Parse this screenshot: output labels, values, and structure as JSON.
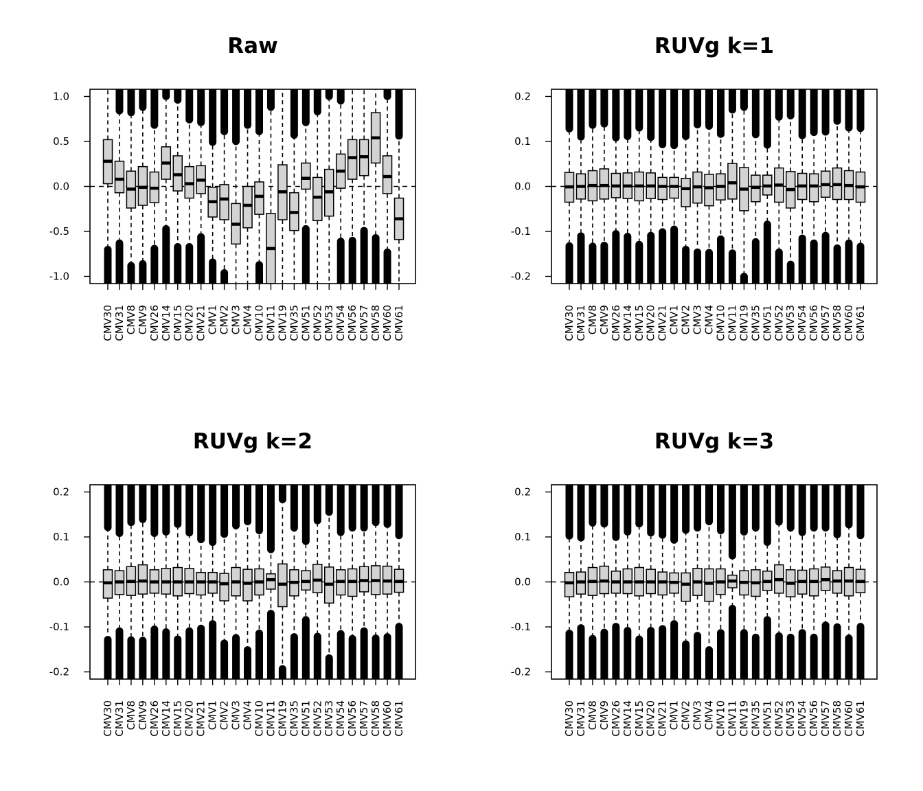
{
  "chart_data": [
    {
      "type": "boxplot",
      "title": "Raw",
      "categories": [
        "CMV30",
        "CMV31",
        "CMV8",
        "CMV9",
        "CMV26",
        "CMV14",
        "CMV15",
        "CMV20",
        "CMV21",
        "CMV1",
        "CMV2",
        "CMV3",
        "CMV4",
        "CMV10",
        "CMV11",
        "CMV19",
        "CMV35",
        "CMV51",
        "CMV52",
        "CMV53",
        "CMV54",
        "CMV56",
        "CMV57",
        "CMV58",
        "CMV60",
        "CMV61"
      ],
      "yticks": [
        1.0,
        0.5,
        0.0,
        -0.5,
        -1.0
      ],
      "ytick_labels": [
        "1.0",
        "0.5",
        "0.0",
        "-0.5",
        "-1.0"
      ],
      "ylim": [
        -1.08,
        1.08
      ],
      "reference_line": 0,
      "q1": [
        0.03,
        -0.07,
        -0.24,
        -0.21,
        -0.18,
        0.08,
        -0.05,
        -0.13,
        -0.08,
        -0.34,
        -0.37,
        -0.64,
        -0.46,
        -0.31,
        -1.08,
        -0.37,
        -0.49,
        -0.03,
        -0.38,
        -0.33,
        -0.02,
        0.08,
        0.12,
        0.26,
        -0.08,
        -0.59
      ],
      "median": [
        0.28,
        0.08,
        -0.03,
        -0.01,
        -0.02,
        0.26,
        0.13,
        0.03,
        0.07,
        -0.17,
        -0.14,
        -0.42,
        -0.21,
        -0.11,
        -0.69,
        -0.06,
        -0.29,
        0.09,
        -0.12,
        -0.06,
        0.17,
        0.32,
        0.33,
        0.54,
        0.11,
        -0.36
      ],
      "q3": [
        0.52,
        0.28,
        0.17,
        0.22,
        0.16,
        0.44,
        0.34,
        0.22,
        0.23,
        -0.01,
        0.02,
        -0.19,
        0.0,
        0.05,
        -0.3,
        0.24,
        -0.07,
        0.26,
        0.1,
        0.19,
        0.36,
        0.52,
        0.52,
        0.82,
        0.34,
        -0.13
      ],
      "upper_tail_start": [
        1.08,
        0.8,
        0.78,
        0.84,
        0.64,
        0.96,
        0.92,
        0.7,
        0.67,
        0.45,
        0.57,
        0.46,
        0.64,
        0.57,
        0.84,
        1.08,
        0.53,
        0.67,
        0.79,
        0.96,
        0.91,
        1.08,
        1.08,
        1.08,
        0.96,
        0.52
      ],
      "lower_tail_start": [
        -0.66,
        -0.59,
        -0.84,
        -0.82,
        -0.65,
        -0.43,
        -0.63,
        -0.63,
        -0.52,
        -0.8,
        -0.92,
        -1.08,
        -1.08,
        -0.83,
        -1.08,
        -1.08,
        -1.08,
        -0.43,
        -1.08,
        -1.08,
        -0.57,
        -0.56,
        -0.45,
        -0.53,
        -0.69,
        -1.08
      ]
    },
    {
      "type": "boxplot",
      "title": "RUVg k=1",
      "categories": [
        "CMV30",
        "CMV31",
        "CMV8",
        "CMV9",
        "CMV26",
        "CMV14",
        "CMV15",
        "CMV20",
        "CMV21",
        "CMV1",
        "CMV2",
        "CMV3",
        "CMV4",
        "CMV10",
        "CMV11",
        "CMV19",
        "CMV35",
        "CMV51",
        "CMV52",
        "CMV53",
        "CMV54",
        "CMV56",
        "CMV57",
        "CMV58",
        "CMV60",
        "CMV61"
      ],
      "yticks": [
        0.2,
        0.1,
        0.0,
        -0.1,
        -0.2
      ],
      "ytick_labels": [
        "0.2",
        "0.1",
        "0.0",
        "-0.1",
        "-0.2"
      ],
      "ylim": [
        -0.216,
        0.216
      ],
      "reference_line": 0,
      "q1": [
        -0.035,
        -0.028,
        -0.032,
        -0.028,
        -0.025,
        -0.027,
        -0.032,
        -0.027,
        -0.029,
        -0.026,
        -0.045,
        -0.037,
        -0.043,
        -0.03,
        -0.028,
        -0.054,
        -0.034,
        -0.019,
        -0.035,
        -0.048,
        -0.029,
        -0.034,
        -0.024,
        -0.029,
        -0.029,
        -0.035
      ],
      "median": [
        -0.001,
        0.0,
        0.002,
        0.002,
        0.001,
        0.001,
        0.001,
        0.001,
        0.0,
        0.0,
        -0.005,
        -0.001,
        -0.003,
        0.0,
        0.008,
        -0.006,
        -0.002,
        0.001,
        0.003,
        -0.007,
        0.001,
        0.001,
        0.004,
        0.004,
        0.002,
        -0.001
      ],
      "q3": [
        0.031,
        0.028,
        0.035,
        0.039,
        0.029,
        0.03,
        0.032,
        0.03,
        0.02,
        0.02,
        0.018,
        0.032,
        0.027,
        0.028,
        0.051,
        0.042,
        0.025,
        0.025,
        0.041,
        0.033,
        0.029,
        0.028,
        0.034,
        0.041,
        0.035,
        0.032
      ],
      "upper_tail_start": [
        0.12,
        0.102,
        0.128,
        0.131,
        0.1,
        0.103,
        0.122,
        0.101,
        0.085,
        0.083,
        0.103,
        0.129,
        0.126,
        0.108,
        0.162,
        0.168,
        0.107,
        0.084,
        0.146,
        0.149,
        0.105,
        0.112,
        0.113,
        0.137,
        0.122,
        0.121
      ],
      "lower_tail_start": [
        -0.124,
        -0.102,
        -0.125,
        -0.123,
        -0.097,
        -0.103,
        -0.121,
        -0.101,
        -0.093,
        -0.087,
        -0.132,
        -0.138,
        -0.139,
        -0.109,
        -0.14,
        -0.192,
        -0.115,
        -0.076,
        -0.138,
        -0.165,
        -0.107,
        -0.118,
        -0.101,
        -0.129,
        -0.118,
        -0.125
      ]
    },
    {
      "type": "boxplot",
      "title": "RUVg k=2",
      "categories": [
        "CMV30",
        "CMV31",
        "CMV8",
        "CMV9",
        "CMV26",
        "CMV14",
        "CMV15",
        "CMV20",
        "CMV21",
        "CMV1",
        "CMV2",
        "CMV3",
        "CMV4",
        "CMV10",
        "CMV11",
        "CMV19",
        "CMV35",
        "CMV51",
        "CMV52",
        "CMV53",
        "CMV54",
        "CMV56",
        "CMV57",
        "CMV58",
        "CMV60",
        "CMV61"
      ],
      "yticks": [
        0.2,
        0.1,
        0.0,
        -0.1,
        -0.2
      ],
      "ytick_labels": [
        "0.2",
        "0.1",
        "0.0",
        "-0.1",
        "-0.2"
      ],
      "ylim": [
        -0.216,
        0.216
      ],
      "reference_line": 0,
      "q1": [
        -0.036,
        -0.028,
        -0.03,
        -0.027,
        -0.025,
        -0.027,
        -0.031,
        -0.026,
        -0.029,
        -0.025,
        -0.042,
        -0.031,
        -0.042,
        -0.029,
        -0.016,
        -0.055,
        -0.031,
        -0.018,
        -0.024,
        -0.047,
        -0.029,
        -0.032,
        -0.022,
        -0.028,
        -0.027,
        -0.023
      ],
      "median": [
        -0.002,
        0.0,
        0.001,
        0.002,
        0.0,
        0.0,
        0.0,
        0.0,
        0.0,
        0.0,
        -0.004,
        0.0,
        -0.003,
        0.0,
        0.005,
        -0.005,
        -0.001,
        0.001,
        0.004,
        -0.005,
        0.001,
        0.001,
        0.003,
        0.003,
        0.002,
        0.001
      ],
      "q3": [
        0.027,
        0.025,
        0.034,
        0.038,
        0.027,
        0.03,
        0.032,
        0.03,
        0.021,
        0.021,
        0.019,
        0.032,
        0.028,
        0.029,
        0.018,
        0.04,
        0.027,
        0.025,
        0.039,
        0.033,
        0.027,
        0.029,
        0.034,
        0.036,
        0.035,
        0.028
      ],
      "upper_tail_start": [
        0.113,
        0.1,
        0.124,
        0.131,
        0.1,
        0.103,
        0.12,
        0.101,
        0.086,
        0.08,
        0.098,
        0.117,
        0.126,
        0.106,
        0.064,
        0.175,
        0.112,
        0.082,
        0.128,
        0.147,
        0.102,
        0.112,
        0.112,
        0.124,
        0.12,
        0.095
      ],
      "lower_tail_start": [
        -0.12,
        -0.101,
        -0.121,
        -0.122,
        -0.097,
        -0.103,
        -0.119,
        -0.101,
        -0.095,
        -0.085,
        -0.128,
        -0.116,
        -0.143,
        -0.106,
        -0.062,
        -0.185,
        -0.114,
        -0.076,
        -0.113,
        -0.161,
        -0.107,
        -0.118,
        -0.101,
        -0.117,
        -0.114,
        -0.091
      ]
    },
    {
      "type": "boxplot",
      "title": "RUVg k=3",
      "categories": [
        "CMV30",
        "CMV31",
        "CMV8",
        "CMV9",
        "CMV26",
        "CMV14",
        "CMV15",
        "CMV20",
        "CMV21",
        "CMV1",
        "CMV2",
        "CMV3",
        "CMV4",
        "CMV10",
        "CMV11",
        "CMV19",
        "CMV35",
        "CMV51",
        "CMV52",
        "CMV53",
        "CMV54",
        "CMV56",
        "CMV57",
        "CMV58",
        "CMV60",
        "CMV61"
      ],
      "yticks": [
        0.2,
        0.1,
        0.0,
        -0.1,
        -0.2
      ],
      "ytick_labels": [
        "0.2",
        "0.1",
        "0.0",
        "-0.1",
        "-0.2"
      ],
      "ylim": [
        -0.216,
        0.216
      ],
      "reference_line": 0,
      "q1": [
        -0.033,
        -0.027,
        -0.03,
        -0.026,
        -0.025,
        -0.026,
        -0.031,
        -0.026,
        -0.029,
        -0.025,
        -0.043,
        -0.03,
        -0.043,
        -0.028,
        -0.013,
        -0.029,
        -0.032,
        -0.019,
        -0.025,
        -0.033,
        -0.027,
        -0.031,
        -0.019,
        -0.025,
        -0.031,
        -0.024
      ],
      "median": [
        -0.002,
        0.0,
        0.001,
        0.002,
        0.0,
        0.0,
        0.0,
        0.0,
        0.0,
        -0.001,
        -0.005,
        0.0,
        -0.003,
        0.0,
        0.002,
        -0.001,
        -0.002,
        0.001,
        0.005,
        -0.003,
        0.001,
        0.001,
        0.005,
        0.002,
        0.002,
        0.001
      ],
      "q3": [
        0.021,
        0.022,
        0.032,
        0.035,
        0.024,
        0.029,
        0.032,
        0.028,
        0.022,
        0.02,
        0.02,
        0.03,
        0.029,
        0.029,
        0.015,
        0.025,
        0.027,
        0.024,
        0.038,
        0.027,
        0.026,
        0.029,
        0.033,
        0.025,
        0.032,
        0.028
      ],
      "upper_tail_start": [
        0.094,
        0.09,
        0.123,
        0.121,
        0.091,
        0.103,
        0.121,
        0.101,
        0.096,
        0.085,
        0.107,
        0.112,
        0.126,
        0.106,
        0.05,
        0.103,
        0.112,
        0.08,
        0.125,
        0.112,
        0.102,
        0.112,
        0.112,
        0.097,
        0.119,
        0.095
      ],
      "lower_tail_start": [
        -0.106,
        -0.094,
        -0.118,
        -0.104,
        -0.091,
        -0.1,
        -0.119,
        -0.1,
        -0.096,
        -0.085,
        -0.13,
        -0.111,
        -0.143,
        -0.105,
        -0.051,
        -0.105,
        -0.115,
        -0.076,
        -0.112,
        -0.115,
        -0.105,
        -0.115,
        -0.088,
        -0.092,
        -0.117,
        -0.091
      ]
    }
  ]
}
